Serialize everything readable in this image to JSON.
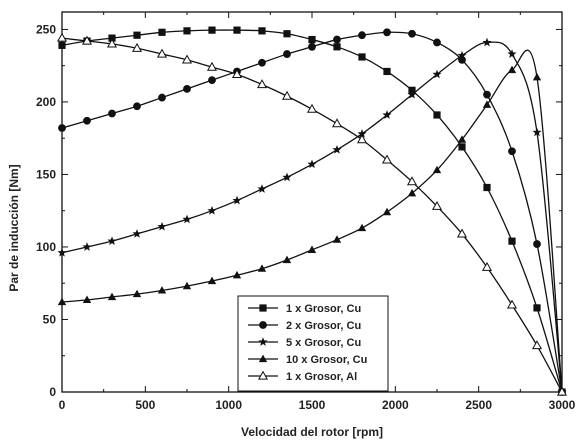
{
  "chart_data": {
    "type": "line",
    "xlabel": "Velocidad del rotor [rpm]",
    "ylabel": "Par de inducción [Nm]",
    "xlim": [
      0,
      3000
    ],
    "ylim": [
      0,
      262
    ],
    "xticks": [
      0,
      500,
      1000,
      1500,
      2000,
      2500,
      3000
    ],
    "yticks": [
      0,
      50,
      100,
      150,
      200,
      250
    ],
    "grid": false,
    "legend_position": "bottom-center",
    "line_color": "#111111",
    "series": [
      {
        "name": "1 x Grosor,  Cu",
        "marker": "square",
        "x": [
          0,
          150,
          300,
          450,
          600,
          750,
          900,
          1050,
          1200,
          1350,
          1500,
          1650,
          1800,
          1950,
          2100,
          2250,
          2400,
          2550,
          2700,
          2850,
          3000
        ],
        "y": [
          239,
          242,
          244,
          246,
          248,
          249,
          249.5,
          249.5,
          249,
          247,
          243,
          238,
          231,
          221,
          208,
          191,
          169,
          141,
          104,
          58,
          0
        ]
      },
      {
        "name": "2 x Grosor,  Cu",
        "marker": "circle",
        "x": [
          0,
          150,
          300,
          450,
          600,
          750,
          900,
          1050,
          1200,
          1350,
          1500,
          1650,
          1800,
          1950,
          2100,
          2250,
          2400,
          2550,
          2700,
          2850,
          3000
        ],
        "y": [
          182,
          187,
          192,
          197,
          203,
          209,
          215,
          221,
          227,
          233,
          238,
          243,
          246,
          248,
          247,
          241,
          229,
          205,
          166,
          102,
          0
        ]
      },
      {
        "name": "5 x Grosor,  Cu",
        "marker": "star",
        "x": [
          0,
          150,
          300,
          450,
          600,
          750,
          900,
          1050,
          1200,
          1350,
          1500,
          1650,
          1800,
          1950,
          2100,
          2250,
          2400,
          2550,
          2700,
          2850,
          3000
        ],
        "y": [
          96,
          100,
          104,
          109,
          114,
          119,
          125,
          132,
          140,
          148,
          157,
          167,
          178,
          191,
          205,
          219,
          232,
          241,
          233,
          179,
          0
        ]
      },
      {
        "name": "10 x Grosor,  Cu",
        "marker": "triangle",
        "x": [
          0,
          150,
          300,
          450,
          600,
          750,
          900,
          1050,
          1200,
          1350,
          1500,
          1650,
          1800,
          1950,
          2100,
          2250,
          2400,
          2550,
          2700,
          2850,
          3000
        ],
        "y": [
          62,
          63.5,
          65.5,
          67.5,
          70,
          73,
          76.5,
          80.5,
          85,
          91,
          98,
          105,
          113,
          124,
          137,
          153,
          174,
          198,
          222,
          217,
          0
        ]
      },
      {
        "name": "1 x Grosor,  Al",
        "marker": "triangle-open",
        "x": [
          0,
          150,
          300,
          450,
          600,
          750,
          900,
          1050,
          1200,
          1350,
          1500,
          1650,
          1800,
          1950,
          2100,
          2250,
          2400,
          2550,
          2700,
          2850,
          3000
        ],
        "y": [
          244,
          242,
          240,
          237,
          233,
          229,
          224,
          219,
          212,
          204,
          195,
          185,
          174,
          160,
          145,
          128,
          109,
          86,
          60,
          32,
          0
        ]
      }
    ]
  }
}
